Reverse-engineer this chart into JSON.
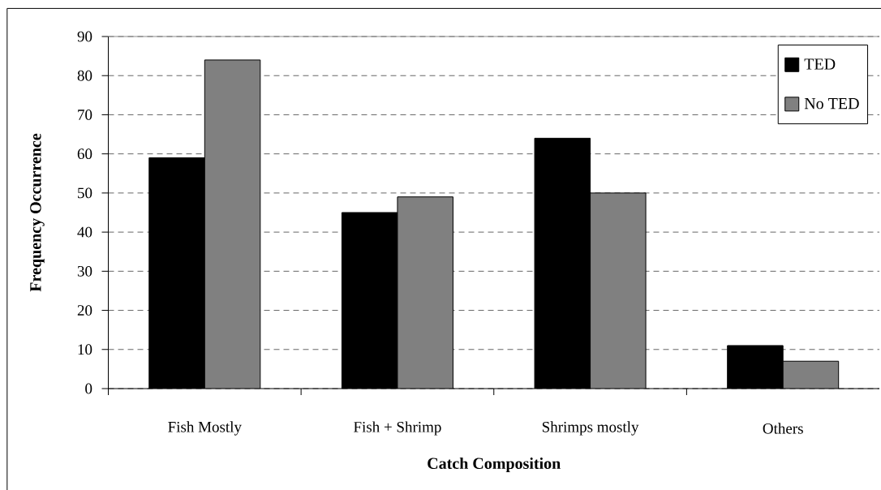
{
  "chart_data": {
    "type": "bar",
    "xlabel": "Catch Composition",
    "ylabel": "Frequency Occurrence",
    "categories": [
      "Fish Mostly",
      "Fish + Shrimp",
      "Shrimps mostly",
      "Others"
    ],
    "series": [
      {
        "name": "TED",
        "color": "#000000",
        "values": [
          59,
          45,
          64,
          11
        ]
      },
      {
        "name": "No TED",
        "color": "#808080",
        "values": [
          84,
          49,
          50,
          7
        ]
      }
    ],
    "ylim": [
      0,
      90
    ],
    "yticks": [
      0,
      10,
      20,
      30,
      40,
      50,
      60,
      70,
      80,
      90
    ],
    "grid": "y",
    "legend": "top right"
  }
}
